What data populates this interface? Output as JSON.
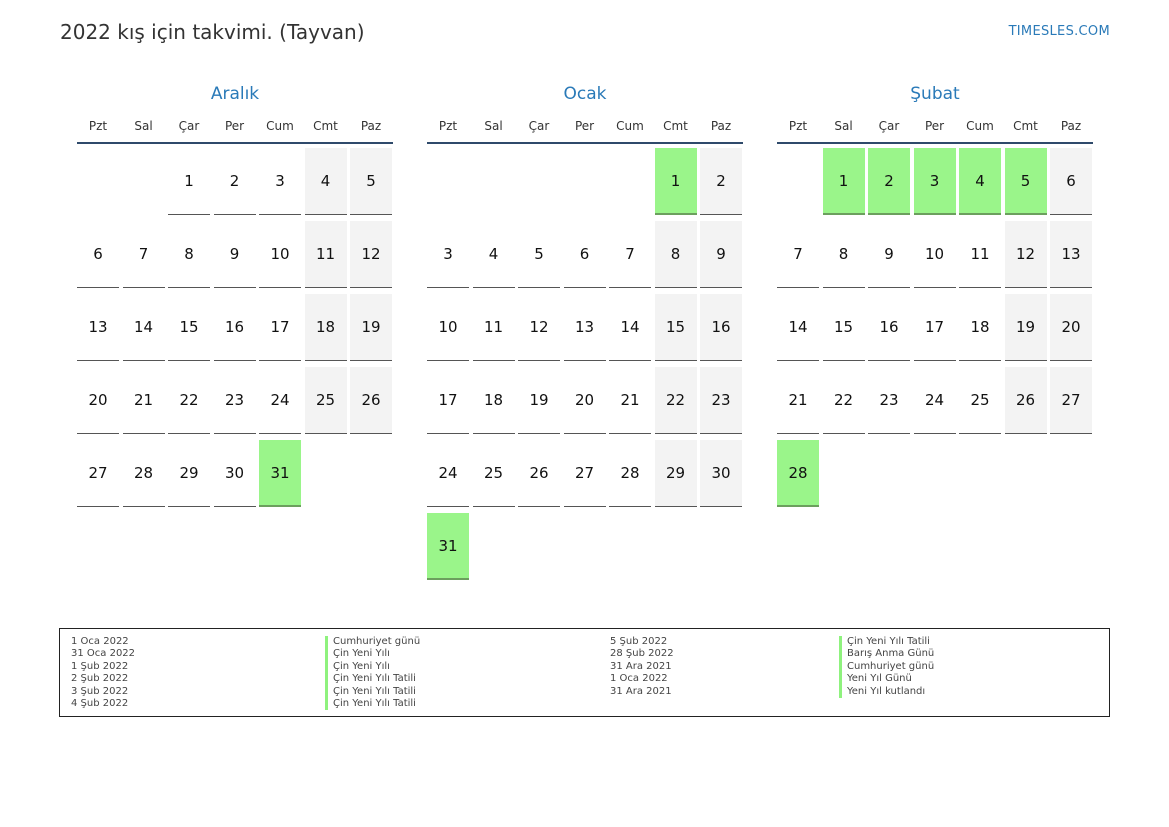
{
  "header": {
    "title": "2022 kış için takvimi. (Tayvan)",
    "site": "TIMESLES.COM"
  },
  "weekdays": [
    "Pzt",
    "Sal",
    "Çar",
    "Per",
    "Cum",
    "Cmt",
    "Paz"
  ],
  "colors": {
    "holiday": "#9af58a",
    "weekend": "#f3f3f3",
    "accent": "#2a7ab8"
  },
  "months": [
    {
      "name": "Aralık",
      "start_weekday": 2,
      "days": 31,
      "holidays": [
        31
      ]
    },
    {
      "name": "Ocak",
      "start_weekday": 5,
      "days": 31,
      "holidays": [
        1,
        31
      ]
    },
    {
      "name": "Şubat",
      "start_weekday": 1,
      "days": 28,
      "holidays": [
        1,
        2,
        3,
        4,
        5,
        28
      ]
    }
  ],
  "legend": {
    "col1_dates": [
      "1 Oca 2022",
      "31 Oca 2022",
      "1 Şub 2022",
      "2 Şub 2022",
      "3 Şub 2022",
      "4 Şub 2022"
    ],
    "col1_names": [
      "Cumhuriyet günü",
      "Çin Yeni Yılı",
      "Çin Yeni Yılı",
      "Çin Yeni Yılı Tatili",
      "Çin Yeni Yılı Tatili",
      "Çin Yeni Yılı Tatili"
    ],
    "col2_dates": [
      "5 Şub 2022",
      "28 Şub 2022",
      "31 Ara 2021",
      "1 Oca 2022",
      "31 Ara 2021"
    ],
    "col2_names": [
      "Çin Yeni Yılı Tatili",
      "Barış Anma Günü",
      "Cumhuriyet günü",
      "Yeni Yıl Günü",
      "Yeni Yıl kutlandı"
    ]
  }
}
